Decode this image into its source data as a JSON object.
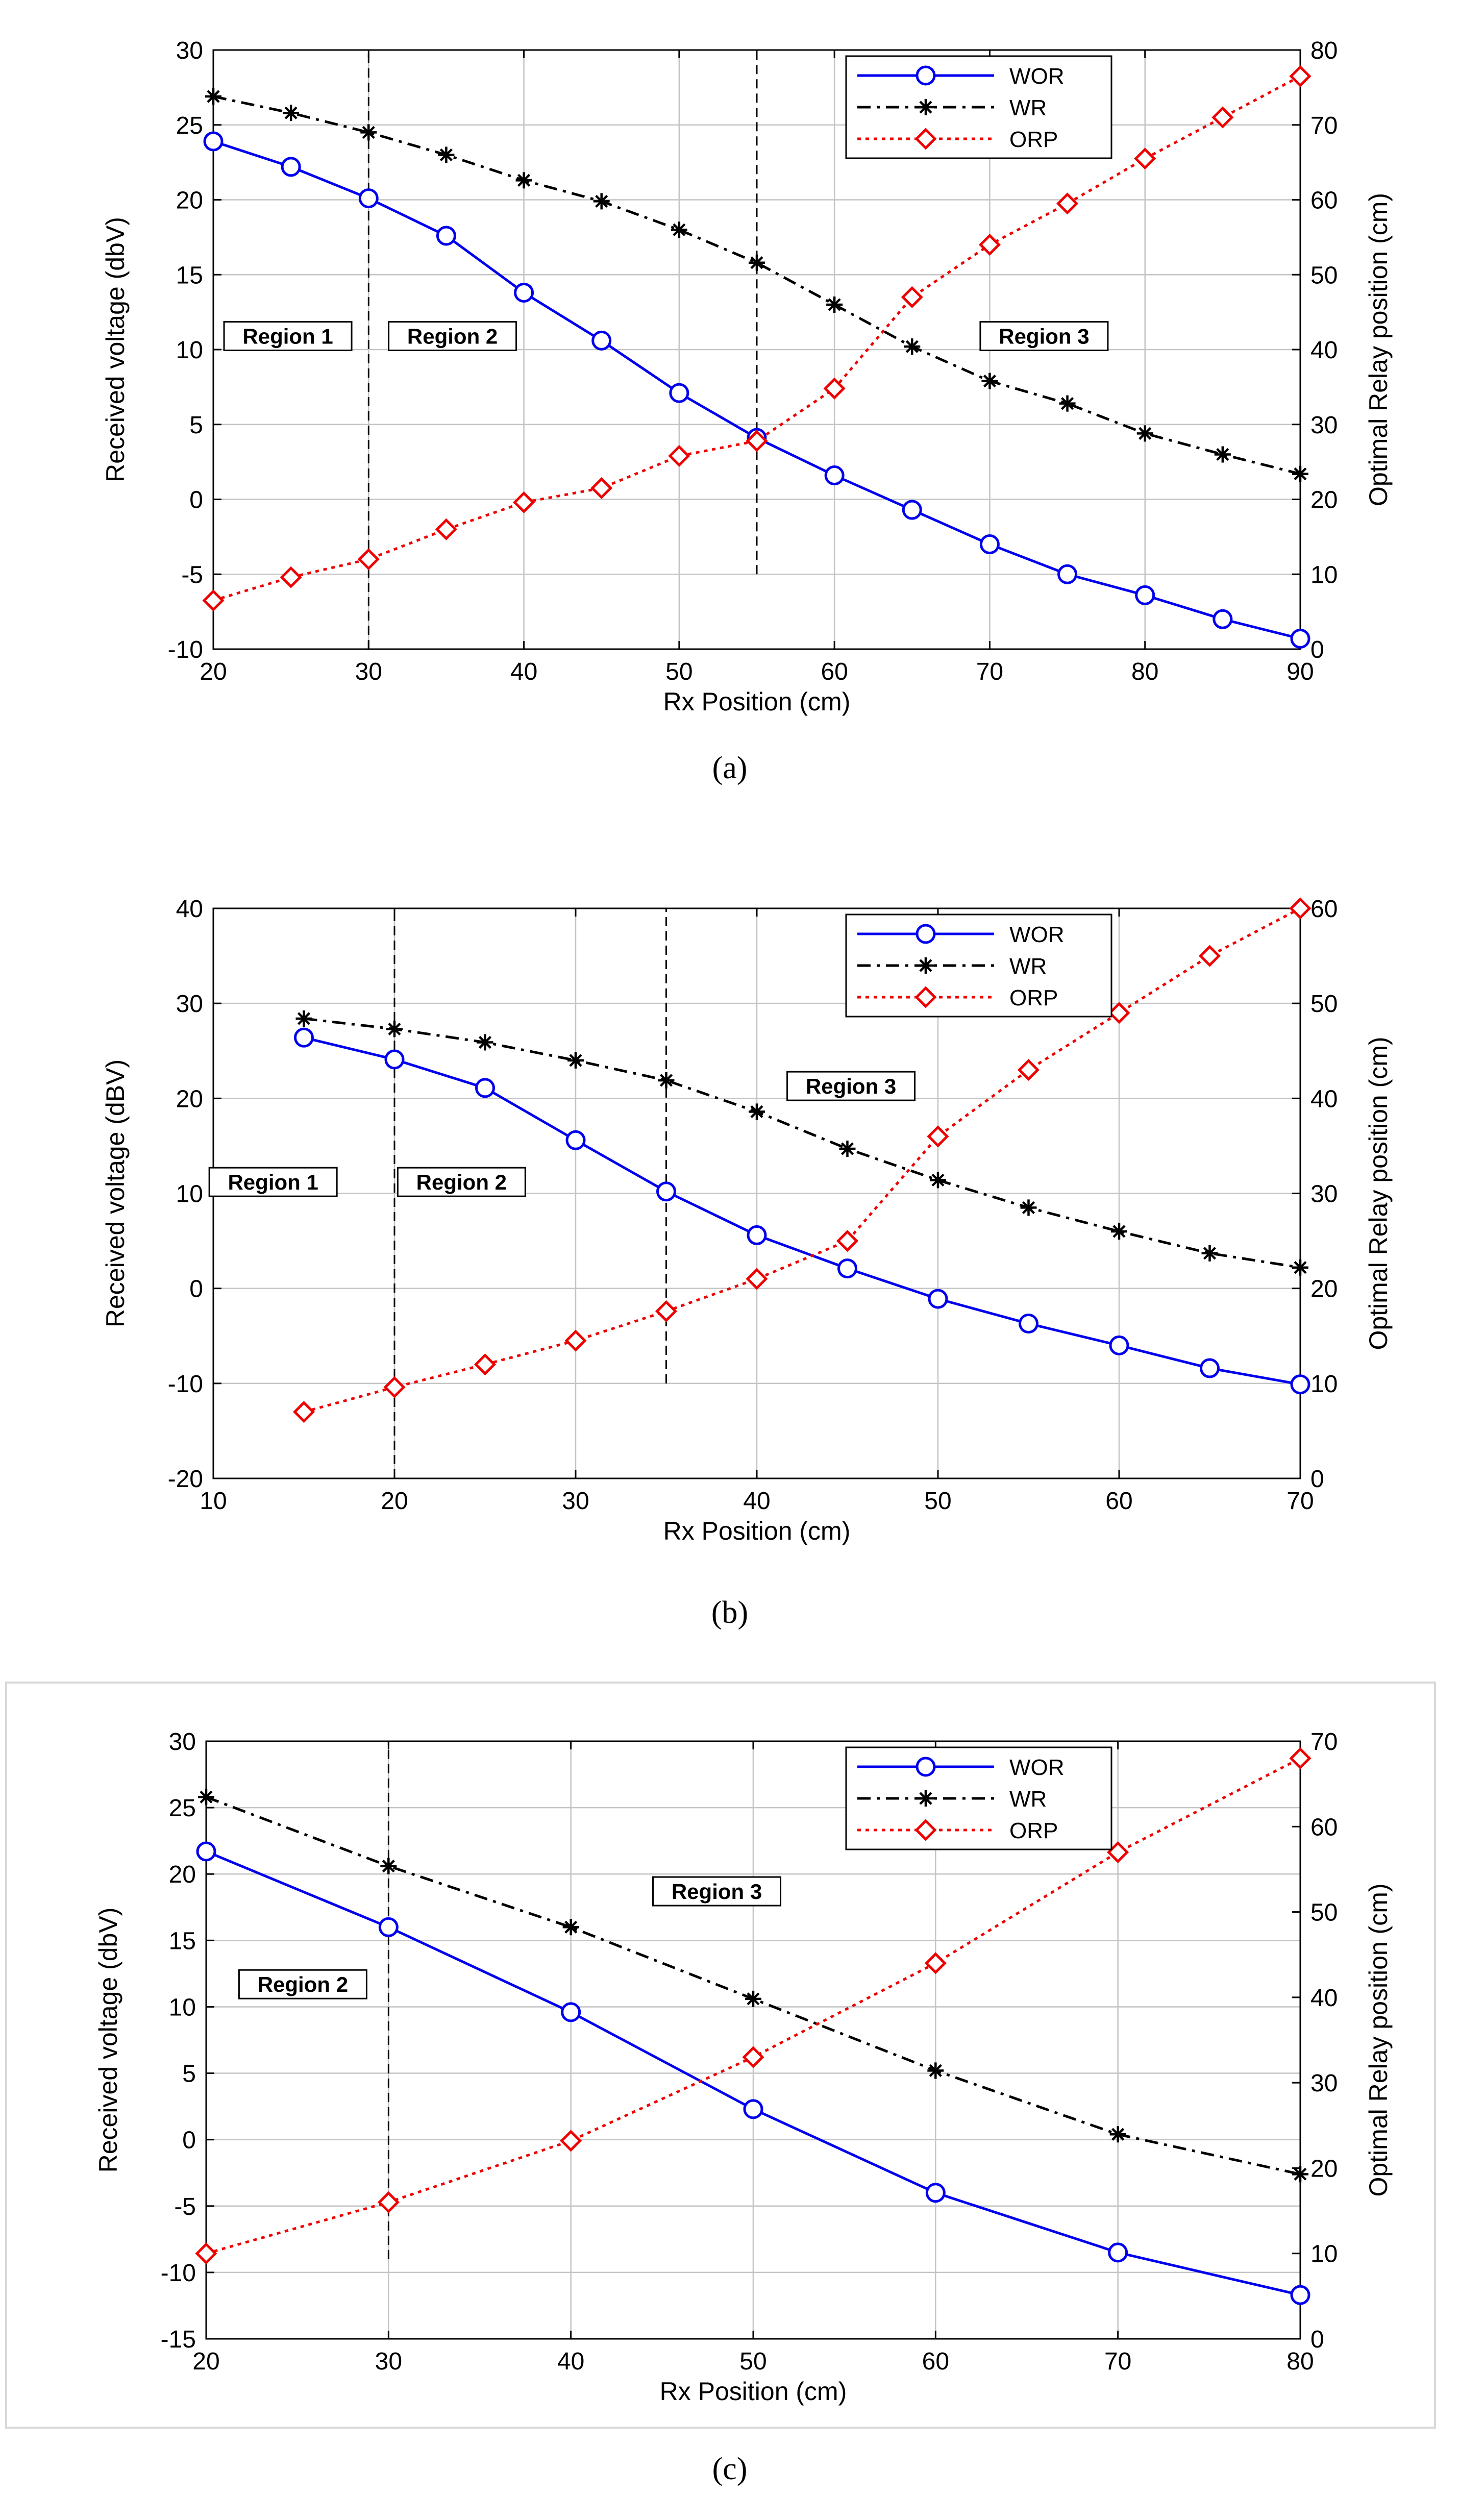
{
  "chart_data": [
    {
      "type": "line",
      "caption": "(a)",
      "xlabel": "Rx Position (cm)",
      "ylabel": "Received voltage (dbV)",
      "ylabel_right": "Optimal Relay position (cm)",
      "xlim": [
        20,
        90
      ],
      "ylim": [
        -10,
        30
      ],
      "ylim_right": [
        0,
        80
      ],
      "xticks": [
        "20",
        "30",
        "40",
        "50",
        "60",
        "70",
        "80",
        "90"
      ],
      "yticks": [
        "-10",
        "-5",
        "0",
        "5",
        "10",
        "15",
        "20",
        "25",
        "30"
      ],
      "yticks_right": [
        "0",
        "10",
        "20",
        "30",
        "40",
        "50",
        "60",
        "70",
        "80"
      ],
      "grid": true,
      "legend_position": "top-right",
      "series": [
        {
          "name": "WOR",
          "axis": "left",
          "color": "#0000ee",
          "style": "solid",
          "marker": "circle",
          "x": [
            20,
            25,
            30,
            35,
            40,
            45,
            50,
            55,
            60,
            65,
            70,
            75,
            80,
            85,
            90
          ],
          "values": [
            23.9,
            22.2,
            20.1,
            17.6,
            13.8,
            10.6,
            7.1,
            4.1,
            1.6,
            -0.7,
            -3.0,
            -5.0,
            -6.4,
            -8.0,
            -9.3
          ]
        },
        {
          "name": "WR",
          "axis": "left",
          "color": "#000000",
          "style": "dashdot",
          "marker": "star",
          "x": [
            20,
            25,
            30,
            35,
            40,
            45,
            50,
            55,
            60,
            65,
            70,
            75,
            80,
            85,
            90
          ],
          "values": [
            26.9,
            25.8,
            24.5,
            23.0,
            21.3,
            19.9,
            18.0,
            15.8,
            13.0,
            10.2,
            7.9,
            6.4,
            4.4,
            3.0,
            1.7
          ]
        },
        {
          "name": "ORP",
          "axis": "right",
          "color": "#ee0000",
          "style": "dotted",
          "marker": "diamond",
          "x": [
            20,
            25,
            30,
            35,
            40,
            45,
            50,
            55,
            60,
            65,
            70,
            75,
            80,
            85,
            90
          ],
          "values": [
            6.5,
            9.6,
            12.0,
            16.0,
            19.6,
            21.5,
            25.8,
            27.8,
            34.8,
            47.0,
            54.0,
            59.5,
            65.5,
            71.0,
            76.5
          ]
        }
      ],
      "vlines": [
        {
          "x": 30,
          "y_from": -10,
          "y_to": 30
        },
        {
          "x": 55,
          "y_from": -5,
          "y_to": 30
        }
      ],
      "region_labels": [
        {
          "text": "Region 1",
          "x": 24.8,
          "y": 10.9
        },
        {
          "text": "Region 2",
          "x": 35.4,
          "y": 10.9
        },
        {
          "text": "Region 3",
          "x": 73.5,
          "y": 10.9
        }
      ]
    },
    {
      "type": "line",
      "caption": "(b)",
      "xlabel": "Rx Position (cm)",
      "ylabel": "Received voltage (dBV)",
      "ylabel_right": "Optimal Relay position (cm)",
      "xlim": [
        10,
        70
      ],
      "ylim": [
        -20,
        40
      ],
      "ylim_right": [
        0,
        60
      ],
      "xticks": [
        "10",
        "20",
        "30",
        "40",
        "50",
        "60",
        "70"
      ],
      "yticks": [
        "-20",
        "-10",
        "0",
        "10",
        "20",
        "30",
        "40"
      ],
      "yticks_right": [
        "0",
        "10",
        "20",
        "30",
        "40",
        "50",
        "60"
      ],
      "grid": true,
      "legend_position": "top-right",
      "series": [
        {
          "name": "WOR",
          "axis": "left",
          "color": "#0000ee",
          "style": "solid",
          "marker": "circle",
          "x": [
            15,
            20,
            25,
            30,
            35,
            40,
            45,
            50,
            55,
            60,
            65,
            70
          ],
          "values": [
            26.4,
            24.1,
            21.1,
            15.6,
            10.2,
            5.6,
            2.1,
            -1.1,
            -3.7,
            -6.0,
            -8.4,
            -10.1
          ]
        },
        {
          "name": "WR",
          "axis": "left",
          "color": "#000000",
          "style": "dashdot",
          "marker": "star",
          "x": [
            15,
            20,
            25,
            30,
            35,
            40,
            45,
            50,
            55,
            60,
            65,
            70
          ],
          "values": [
            28.4,
            27.3,
            25.9,
            24.0,
            21.9,
            18.6,
            14.7,
            11.4,
            8.5,
            6.0,
            3.7,
            2.2
          ]
        },
        {
          "name": "ORP",
          "axis": "right",
          "color": "#ee0000",
          "style": "dotted",
          "marker": "diamond",
          "x": [
            15,
            20,
            25,
            30,
            35,
            40,
            45,
            50,
            55,
            60,
            65,
            70
          ],
          "values": [
            7.0,
            9.6,
            12.0,
            14.5,
            17.6,
            21.0,
            25.0,
            36.0,
            43.0,
            49.0,
            55.0,
            60.0
          ]
        }
      ],
      "vlines": [
        {
          "x": 20,
          "y_from": -20,
          "y_to": 40
        },
        {
          "x": 35,
          "y_from": -10,
          "y_to": 40
        }
      ],
      "region_labels": [
        {
          "text": "Region 1",
          "x": 13.3,
          "y": 11.2
        },
        {
          "text": "Region 2",
          "x": 23.7,
          "y": 11.2
        },
        {
          "text": "Region 3",
          "x": 45.2,
          "y": 21.3
        }
      ]
    },
    {
      "type": "line",
      "caption": "(c)",
      "xlabel": "Rx Position (cm)",
      "ylabel": "Received voltage (dbV)",
      "ylabel_right": "Optimal Relay position (cm)",
      "xlim": [
        20,
        80
      ],
      "ylim": [
        -15,
        30
      ],
      "ylim_right": [
        0,
        70
      ],
      "xticks": [
        "20",
        "30",
        "40",
        "50",
        "60",
        "70",
        "80"
      ],
      "yticks": [
        "-15",
        "-10",
        "-5",
        "0",
        "5",
        "10",
        "15",
        "20",
        "25",
        "30"
      ],
      "yticks_right": [
        "0",
        "10",
        "20",
        "30",
        "40",
        "50",
        "60",
        "70"
      ],
      "grid": true,
      "legend_position": "top-right",
      "series": [
        {
          "name": "WOR",
          "axis": "left",
          "color": "#0000ee",
          "style": "solid",
          "marker": "circle",
          "x": [
            20,
            30,
            40,
            50,
            60,
            70,
            80
          ],
          "values": [
            21.7,
            16.0,
            9.6,
            2.3,
            -4.0,
            -8.5,
            -11.7
          ]
        },
        {
          "name": "WR",
          "axis": "left",
          "color": "#000000",
          "style": "dashdot",
          "marker": "star",
          "x": [
            20,
            30,
            40,
            50,
            60,
            70,
            80
          ],
          "values": [
            25.8,
            20.6,
            16.0,
            10.6,
            5.2,
            0.4,
            -2.6
          ]
        },
        {
          "name": "ORP",
          "axis": "right",
          "color": "#ee0000",
          "style": "dotted",
          "marker": "diamond",
          "x": [
            20,
            30,
            40,
            50,
            60,
            70,
            80
          ],
          "values": [
            10.0,
            16.0,
            23.2,
            33.0,
            44.0,
            57.0,
            68.0
          ]
        }
      ],
      "vlines": [
        {
          "x": 30,
          "y_from": -9,
          "y_to": 30
        }
      ],
      "region_labels": [
        {
          "text": "Region 2",
          "x": 25.3,
          "y": 11.7
        },
        {
          "text": "Region 3",
          "x": 48.0,
          "y": 18.7
        }
      ]
    }
  ]
}
